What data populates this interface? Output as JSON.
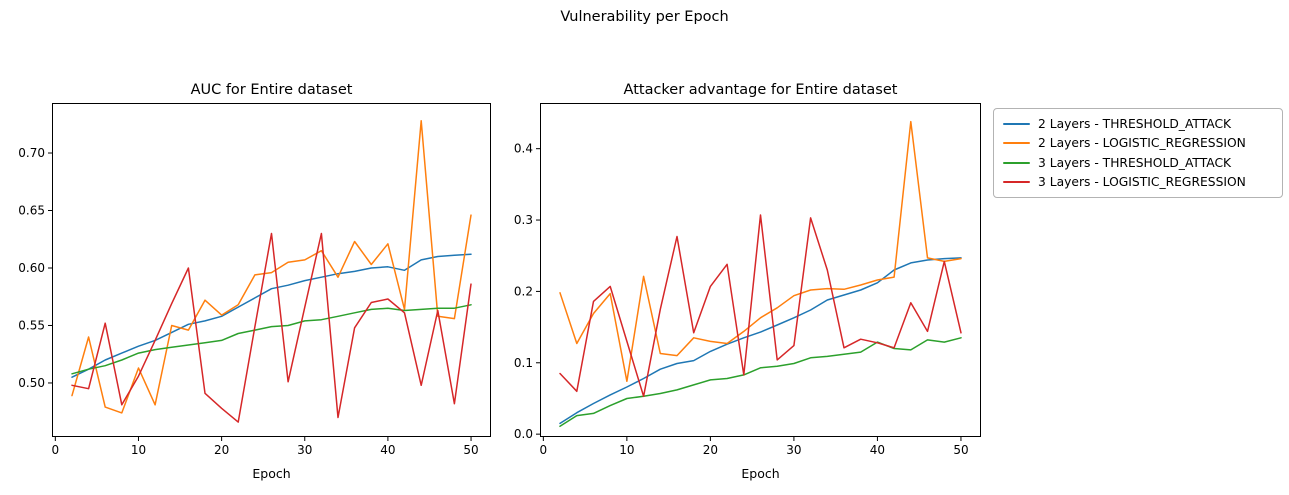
{
  "figure": {
    "suptitle": "Vulnerability per Epoch",
    "background": "#ffffff",
    "text_color": "#000000"
  },
  "legend": {
    "entries": [
      {
        "label": "2 Layers - THRESHOLD_ATTACK",
        "color": "#1f77b4"
      },
      {
        "label": "2 Layers - LOGISTIC_REGRESSION",
        "color": "#ff7f0e"
      },
      {
        "label": "3 Layers - THRESHOLD_ATTACK",
        "color": "#2ca02c"
      },
      {
        "label": "3 Layers - LOGISTIC_REGRESSION",
        "color": "#d62728"
      }
    ]
  },
  "chart_data": [
    {
      "type": "line",
      "title": "AUC for Entire dataset",
      "xlabel": "Epoch",
      "grid": false,
      "legend_position": "outside-right-of-second-plot",
      "x": [
        2,
        4,
        6,
        8,
        10,
        12,
        14,
        16,
        18,
        20,
        22,
        24,
        26,
        28,
        30,
        32,
        34,
        36,
        38,
        40,
        42,
        44,
        46,
        48,
        50
      ],
      "xlim": [
        -0.4,
        52.4
      ],
      "ylim": [
        0.453,
        0.7435
      ],
      "xticks": [
        0,
        10,
        20,
        30,
        40,
        50
      ],
      "xticklabels": [
        "0",
        "10",
        "20",
        "30",
        "40",
        "50"
      ],
      "yticks": [
        0.5,
        0.55,
        0.6,
        0.65,
        0.7
      ],
      "yticklabels": [
        "0.50",
        "0.55",
        "0.60",
        "0.65",
        "0.70"
      ],
      "series": [
        {
          "name": "2 Layers - THRESHOLD_ATTACK",
          "color": "#1f77b4",
          "values": [
            0.505,
            0.512,
            0.52,
            0.526,
            0.532,
            0.537,
            0.544,
            0.551,
            0.554,
            0.558,
            0.566,
            0.574,
            0.582,
            0.585,
            0.589,
            0.592,
            0.595,
            0.597,
            0.6,
            0.601,
            0.598,
            0.607,
            0.61,
            0.611,
            0.612
          ]
        },
        {
          "name": "2 Layers - LOGISTIC_REGRESSION",
          "color": "#ff7f0e",
          "values": [
            0.489,
            0.54,
            0.479,
            0.474,
            0.513,
            0.481,
            0.55,
            0.546,
            0.572,
            0.559,
            0.568,
            0.594,
            0.596,
            0.605,
            0.607,
            0.615,
            0.592,
            0.623,
            0.603,
            0.621,
            0.564,
            0.728,
            0.558,
            0.556,
            0.646
          ]
        },
        {
          "name": "3 Layers - THRESHOLD_ATTACK",
          "color": "#2ca02c",
          "values": [
            0.508,
            0.512,
            0.515,
            0.52,
            0.526,
            0.529,
            0.531,
            0.533,
            0.535,
            0.537,
            0.543,
            0.546,
            0.549,
            0.55,
            0.554,
            0.555,
            0.558,
            0.561,
            0.564,
            0.565,
            0.563,
            0.564,
            0.565,
            0.565,
            0.568
          ]
        },
        {
          "name": "3 Layers - LOGISTIC_REGRESSION",
          "color": "#d62728",
          "values": [
            0.498,
            0.495,
            0.552,
            0.481,
            0.506,
            0.537,
            0.569,
            0.6,
            0.491,
            0.478,
            0.466,
            0.549,
            0.63,
            0.501,
            0.566,
            0.63,
            0.47,
            0.548,
            0.57,
            0.573,
            0.561,
            0.498,
            0.563,
            0.482,
            0.586
          ]
        }
      ]
    },
    {
      "type": "line",
      "title": "Attacker advantage for Entire dataset",
      "xlabel": "Epoch",
      "grid": false,
      "x": [
        2,
        4,
        6,
        8,
        10,
        12,
        14,
        16,
        18,
        20,
        22,
        24,
        26,
        28,
        30,
        32,
        34,
        36,
        38,
        40,
        42,
        44,
        46,
        48,
        50
      ],
      "xlim": [
        -0.4,
        52.4
      ],
      "ylim": [
        -0.004,
        0.464
      ],
      "xticks": [
        0,
        10,
        20,
        30,
        40,
        50
      ],
      "xticklabels": [
        "0",
        "10",
        "20",
        "30",
        "40",
        "50"
      ],
      "yticks": [
        0.0,
        0.1,
        0.2,
        0.3,
        0.4
      ],
      "yticklabels": [
        "0.0",
        "0.1",
        "0.2",
        "0.3",
        "0.4"
      ],
      "series": [
        {
          "name": "2 Layers - THRESHOLD_ATTACK",
          "color": "#1f77b4",
          "values": [
            0.015,
            0.03,
            0.043,
            0.055,
            0.066,
            0.078,
            0.091,
            0.099,
            0.103,
            0.116,
            0.126,
            0.135,
            0.143,
            0.153,
            0.163,
            0.174,
            0.188,
            0.195,
            0.202,
            0.212,
            0.23,
            0.24,
            0.244,
            0.246,
            0.247
          ]
        },
        {
          "name": "2 Layers - LOGISTIC_REGRESSION",
          "color": "#ff7f0e",
          "values": [
            0.198,
            0.127,
            0.169,
            0.197,
            0.074,
            0.221,
            0.113,
            0.11,
            0.135,
            0.13,
            0.127,
            0.144,
            0.163,
            0.177,
            0.194,
            0.202,
            0.204,
            0.203,
            0.209,
            0.216,
            0.22,
            0.438,
            0.247,
            0.242,
            0.246
          ]
        },
        {
          "name": "3 Layers - THRESHOLD_ATTACK",
          "color": "#2ca02c",
          "values": [
            0.011,
            0.026,
            0.029,
            0.04,
            0.05,
            0.053,
            0.057,
            0.062,
            0.069,
            0.076,
            0.078,
            0.083,
            0.093,
            0.095,
            0.099,
            0.107,
            0.109,
            0.112,
            0.115,
            0.129,
            0.12,
            0.118,
            0.132,
            0.129,
            0.135
          ]
        },
        {
          "name": "3 Layers - LOGISTIC_REGRESSION",
          "color": "#d62728",
          "values": [
            0.085,
            0.06,
            0.186,
            0.207,
            0.13,
            0.053,
            0.175,
            0.277,
            0.142,
            0.207,
            0.238,
            0.083,
            0.307,
            0.104,
            0.124,
            0.303,
            0.23,
            0.121,
            0.133,
            0.128,
            0.121,
            0.184,
            0.144,
            0.242,
            0.142
          ]
        }
      ]
    }
  ]
}
